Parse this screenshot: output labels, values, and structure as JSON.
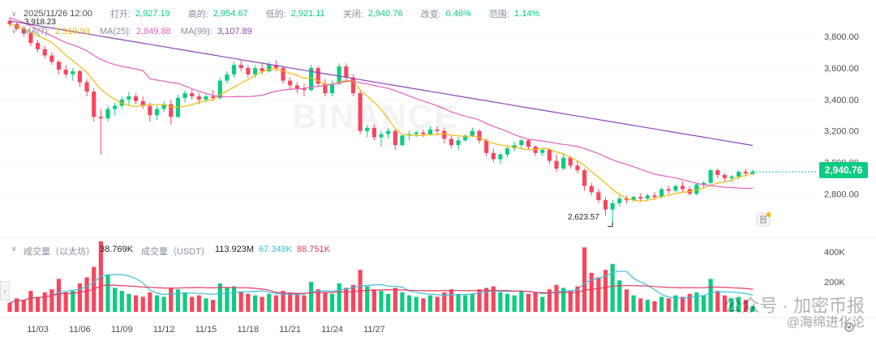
{
  "header": {
    "datetime": "2025/11/26 12:00",
    "open_label": "打开:",
    "open": "2,927.19",
    "high_label": "高的:",
    "high": "2,954.67",
    "low_label": "低的:",
    "low": "2,921.11",
    "close_label": "关闭:",
    "close": "2,940.76",
    "change_label": "改变:",
    "change": "0.46%",
    "range_label": "范围:",
    "range": "1.14%"
  },
  "ma": {
    "ma7_label": "MA(7):",
    "ma7": "2,919.93",
    "ma25_label": "MA(25):",
    "ma25": "2,849.88",
    "ma99_label": "MA(99):",
    "ma99": "3,107.89"
  },
  "volume": {
    "label1": "成交量（以太坊）",
    "value1": "38.769K",
    "label2": "成交量（USDT）",
    "value2": "113.923M",
    "ma_a": "67.348K",
    "ma_b": "88.751K"
  },
  "last_price": "2,940.76",
  "high_marker": "3,918.23",
  "low_marker": "2,623.57",
  "watermark": "BINANCE",
  "footer_watermark": "公众号 · 加密币报",
  "footer_watermark2": "@海绵进化论",
  "colors": {
    "up": "#0ecb81",
    "down": "#f6465d",
    "ma7": "#f0b90b",
    "ma25": "#e55fbd",
    "ma99": "#8d47b6"
  },
  "chart_data": {
    "type": "candlestick",
    "price_axis": {
      "ticks": [
        2800,
        3000,
        3200,
        3400,
        3600,
        3800
      ],
      "tick_labels": [
        "2,800.00",
        "3,000.00",
        "3,200.00",
        "3,400.00",
        "3,600.00",
        "3,800.00"
      ],
      "ylim": [
        2580,
        3930
      ]
    },
    "volume_axis": {
      "ticks": [
        200000,
        400000
      ],
      "tick_labels": [
        "200K",
        "400K"
      ],
      "ylim": [
        0,
        470000
      ]
    },
    "x_tick_labels": [
      "11/03",
      "11/06",
      "11/09",
      "11/12",
      "11/15",
      "11/18",
      "11/21",
      "11/24",
      "11/27"
    ],
    "interval": "12h",
    "ohlcv": [
      [
        3900,
        3918,
        3860,
        3880,
        60
      ],
      [
        3880,
        3890,
        3840,
        3850,
        90
      ],
      [
        3850,
        3870,
        3800,
        3820,
        80
      ],
      [
        3820,
        3830,
        3740,
        3760,
        140
      ],
      [
        3760,
        3780,
        3700,
        3720,
        100
      ],
      [
        3720,
        3740,
        3660,
        3680,
        130
      ],
      [
        3680,
        3700,
        3620,
        3640,
        150
      ],
      [
        3640,
        3650,
        3560,
        3590,
        220
      ],
      [
        3590,
        3620,
        3540,
        3560,
        130
      ],
      [
        3560,
        3600,
        3520,
        3580,
        140
      ],
      [
        3580,
        3590,
        3480,
        3510,
        190
      ],
      [
        3510,
        3530,
        3420,
        3450,
        230
      ],
      [
        3450,
        3470,
        3260,
        3290,
        300
      ],
      [
        3290,
        3340,
        3050,
        3280,
        470
      ],
      [
        3280,
        3360,
        3260,
        3340,
        250
      ],
      [
        3340,
        3380,
        3300,
        3360,
        160
      ],
      [
        3360,
        3420,
        3340,
        3400,
        140
      ],
      [
        3400,
        3450,
        3360,
        3420,
        120
      ],
      [
        3420,
        3440,
        3370,
        3390,
        110
      ],
      [
        3390,
        3420,
        3340,
        3360,
        100
      ],
      [
        3360,
        3380,
        3260,
        3300,
        130
      ],
      [
        3300,
        3360,
        3270,
        3340,
        110
      ],
      [
        3340,
        3390,
        3320,
        3370,
        100
      ],
      [
        3370,
        3400,
        3240,
        3290,
        160
      ],
      [
        3290,
        3430,
        3280,
        3410,
        150
      ],
      [
        3410,
        3460,
        3380,
        3440,
        130
      ],
      [
        3440,
        3470,
        3400,
        3420,
        100
      ],
      [
        3420,
        3440,
        3370,
        3400,
        110
      ],
      [
        3400,
        3440,
        3380,
        3420,
        90
      ],
      [
        3420,
        3460,
        3390,
        3410,
        80
      ],
      [
        3410,
        3540,
        3400,
        3520,
        190
      ],
      [
        3520,
        3580,
        3500,
        3560,
        160
      ],
      [
        3560,
        3640,
        3540,
        3620,
        170
      ],
      [
        3620,
        3650,
        3580,
        3600,
        130
      ],
      [
        3600,
        3620,
        3540,
        3560,
        120
      ],
      [
        3560,
        3620,
        3540,
        3600,
        110
      ],
      [
        3600,
        3630,
        3560,
        3580,
        100
      ],
      [
        3580,
        3640,
        3570,
        3620,
        120
      ],
      [
        3620,
        3650,
        3580,
        3600,
        110
      ],
      [
        3600,
        3610,
        3500,
        3520,
        140
      ],
      [
        3520,
        3540,
        3460,
        3490,
        130
      ],
      [
        3490,
        3510,
        3440,
        3470,
        120
      ],
      [
        3470,
        3500,
        3420,
        3460,
        110
      ],
      [
        3460,
        3620,
        3450,
        3600,
        200
      ],
      [
        3600,
        3610,
        3480,
        3500,
        150
      ],
      [
        3500,
        3530,
        3420,
        3440,
        130
      ],
      [
        3440,
        3520,
        3420,
        3500,
        120
      ],
      [
        3500,
        3630,
        3490,
        3610,
        190
      ],
      [
        3610,
        3630,
        3510,
        3540,
        160
      ],
      [
        3540,
        3560,
        3420,
        3440,
        180
      ],
      [
        3440,
        3460,
        3180,
        3200,
        280
      ],
      [
        3200,
        3240,
        3160,
        3220,
        170
      ],
      [
        3220,
        3240,
        3140,
        3160,
        150
      ],
      [
        3160,
        3200,
        3100,
        3180,
        140
      ],
      [
        3180,
        3220,
        3150,
        3200,
        120
      ],
      [
        3200,
        3210,
        3080,
        3110,
        160
      ],
      [
        3110,
        3180,
        3100,
        3170,
        130
      ],
      [
        3170,
        3200,
        3140,
        3180,
        110
      ],
      [
        3180,
        3200,
        3160,
        3190,
        100
      ],
      [
        3190,
        3210,
        3160,
        3180,
        90
      ],
      [
        3180,
        3230,
        3170,
        3210,
        110
      ],
      [
        3210,
        3230,
        3180,
        3200,
        100
      ],
      [
        3200,
        3220,
        3120,
        3150,
        130
      ],
      [
        3150,
        3170,
        3090,
        3110,
        150
      ],
      [
        3110,
        3160,
        3080,
        3140,
        120
      ],
      [
        3140,
        3180,
        3130,
        3170,
        110
      ],
      [
        3170,
        3220,
        3160,
        3200,
        120
      ],
      [
        3200,
        3210,
        3120,
        3140,
        150
      ],
      [
        3140,
        3150,
        3040,
        3060,
        160
      ],
      [
        3060,
        3090,
        3000,
        3020,
        170
      ],
      [
        3020,
        3060,
        2990,
        3050,
        130
      ],
      [
        3050,
        3100,
        3030,
        3090,
        120
      ],
      [
        3090,
        3130,
        3070,
        3110,
        110
      ],
      [
        3110,
        3150,
        3090,
        3140,
        140
      ],
      [
        3140,
        3150,
        3080,
        3100,
        120
      ],
      [
        3100,
        3110,
        3040,
        3060,
        130
      ],
      [
        3060,
        3090,
        3040,
        3080,
        100
      ],
      [
        3080,
        3090,
        2990,
        3010,
        150
      ],
      [
        3010,
        3050,
        2940,
        2960,
        180
      ],
      [
        2960,
        3050,
        2950,
        3030,
        160
      ],
      [
        3030,
        3040,
        2960,
        2980,
        140
      ],
      [
        2980,
        3010,
        2930,
        2950,
        170
      ],
      [
        2950,
        2960,
        2820,
        2850,
        430
      ],
      [
        2850,
        2870,
        2790,
        2810,
        260
      ],
      [
        2810,
        2830,
        2740,
        2760,
        230
      ],
      [
        2760,
        2780,
        2660,
        2700,
        280
      ],
      [
        2700,
        2760,
        2623,
        2740,
        320
      ],
      [
        2740,
        2790,
        2720,
        2770,
        210
      ],
      [
        2770,
        2790,
        2740,
        2760,
        150
      ],
      [
        2760,
        2790,
        2750,
        2780,
        110
      ],
      [
        2780,
        2800,
        2750,
        2770,
        90
      ],
      [
        2770,
        2800,
        2760,
        2790,
        80
      ],
      [
        2790,
        2810,
        2760,
        2780,
        70
      ],
      [
        2780,
        2840,
        2770,
        2830,
        100
      ],
      [
        2830,
        2850,
        2800,
        2820,
        90
      ],
      [
        2820,
        2860,
        2810,
        2850,
        110
      ],
      [
        2850,
        2880,
        2810,
        2830,
        100
      ],
      [
        2830,
        2850,
        2790,
        2800,
        120
      ],
      [
        2800,
        2870,
        2790,
        2860,
        130
      ],
      [
        2860,
        2880,
        2840,
        2870,
        110
      ],
      [
        2870,
        2960,
        2860,
        2950,
        220
      ],
      [
        2950,
        2960,
        2900,
        2920,
        140
      ],
      [
        2920,
        2930,
        2880,
        2900,
        110
      ],
      [
        2900,
        2920,
        2870,
        2910,
        90
      ],
      [
        2910,
        2950,
        2890,
        2940,
        100
      ],
      [
        2940,
        2960,
        2910,
        2930,
        80
      ],
      [
        2927,
        2955,
        2921,
        2941,
        39
      ]
    ]
  }
}
